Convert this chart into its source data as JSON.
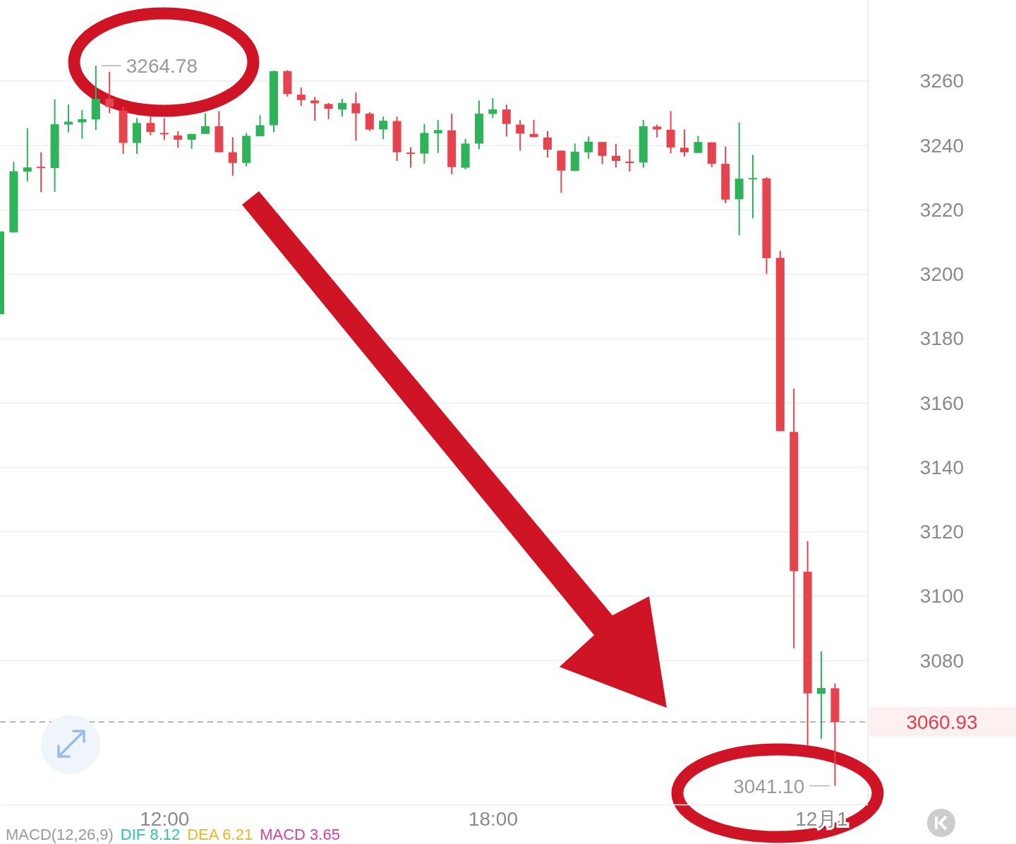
{
  "chart_data": {
    "type": "candlestick",
    "x": [
      9,
      9.25,
      9.5,
      9.75,
      10,
      10.25,
      10.5,
      10.75,
      11,
      11.25,
      11.5,
      11.75,
      12,
      12.25,
      12.5,
      12.75,
      13,
      13.25,
      13.5,
      13.75,
      14,
      14.25,
      14.5,
      14.75,
      15,
      15.25,
      15.5,
      15.75,
      16,
      16.25,
      16.5,
      16.75,
      17,
      17.25,
      17.5,
      17.75,
      18,
      18.25,
      18.5,
      18.75,
      19,
      19.25,
      19.5,
      19.75,
      20,
      20.25,
      20.5,
      20.75,
      21,
      21.25,
      21.5,
      21.75,
      22,
      22.25,
      22.5,
      22.75,
      23,
      23.25,
      23.5,
      23.75,
      24,
      24.25
    ],
    "ohlc": [
      [
        3187.6,
        3213.3,
        3187.6,
        3213.3
      ],
      [
        3213.0,
        3234.9,
        3213.0,
        3232.0
      ],
      [
        3231.9,
        3245.4,
        3228.8,
        3233.2
      ],
      [
        3233.4,
        3237.9,
        3225.5,
        3233.2
      ],
      [
        3233.0,
        3254.3,
        3225.6,
        3246.6
      ],
      [
        3246.5,
        3252.7,
        3244.1,
        3247.4
      ],
      [
        3247.2,
        3251.0,
        3242.1,
        3248.2
      ],
      [
        3248.1,
        3264.78,
        3244.8,
        3254.5
      ],
      [
        3254.5,
        3262.9,
        3250.0,
        3252.0
      ],
      [
        3250.8,
        3252.0,
        3237.4,
        3240.8
      ],
      [
        3240.8,
        3248.5,
        3237.4,
        3247.0
      ],
      [
        3247.0,
        3249.0,
        3243.2,
        3244.2
      ],
      [
        3243.9,
        3248.5,
        3241.7,
        3243.6
      ],
      [
        3243.1,
        3244.4,
        3239.3,
        3241.8
      ],
      [
        3241.8,
        3243.6,
        3239.0,
        3243.6
      ],
      [
        3243.6,
        3250.0,
        3243.6,
        3246.0
      ],
      [
        3246.0,
        3250.7,
        3237.9,
        3237.9
      ],
      [
        3237.9,
        3242.6,
        3230.6,
        3234.6
      ],
      [
        3234.6,
        3243.9,
        3233.5,
        3243.0
      ],
      [
        3242.9,
        3249.4,
        3242.9,
        3246.3
      ],
      [
        3246.3,
        3263.3,
        3244.1,
        3263.1
      ],
      [
        3263.1,
        3263.4,
        3255.2,
        3256.0
      ],
      [
        3255.8,
        3258.0,
        3252.3,
        3254.1
      ],
      [
        3254.0,
        3255.1,
        3247.7,
        3253.1
      ],
      [
        3252.9,
        3253.2,
        3248.2,
        3251.4
      ],
      [
        3251.2,
        3254.5,
        3249.0,
        3253.2
      ],
      [
        3253.1,
        3256.5,
        3241.5,
        3250.0
      ],
      [
        3249.9,
        3250.4,
        3244.5,
        3245.0
      ],
      [
        3245.0,
        3249.0,
        3242.0,
        3247.7
      ],
      [
        3247.6,
        3249.0,
        3235.2,
        3237.9
      ],
      [
        3237.8,
        3239.5,
        3233.1,
        3237.6
      ],
      [
        3237.5,
        3246.7,
        3234.4,
        3243.9
      ],
      [
        3243.8,
        3247.9,
        3237.7,
        3244.8
      ],
      [
        3244.7,
        3249.9,
        3231.1,
        3233.3
      ],
      [
        3233.1,
        3242.1,
        3232.6,
        3240.6
      ],
      [
        3240.6,
        3254.0,
        3238.9,
        3249.9
      ],
      [
        3249.8,
        3254.7,
        3248.5,
        3251.2
      ],
      [
        3251.2,
        3252.7,
        3242.8,
        3246.7
      ],
      [
        3246.5,
        3247.9,
        3238.4,
        3243.7
      ],
      [
        3243.6,
        3247.9,
        3242.6,
        3242.6
      ],
      [
        3242.5,
        3244.5,
        3236.3,
        3238.7
      ],
      [
        3238.4,
        3238.4,
        3225.3,
        3232.2
      ],
      [
        3232.1,
        3240.6,
        3232.1,
        3238.1
      ],
      [
        3237.9,
        3242.8,
        3235.9,
        3241.2
      ],
      [
        3241.1,
        3241.1,
        3234.2,
        3236.8
      ],
      [
        3236.8,
        3240.5,
        3233.2,
        3235.2
      ],
      [
        3235.0,
        3238.8,
        3231.9,
        3234.8
      ],
      [
        3234.7,
        3247.9,
        3233.1,
        3246.0
      ],
      [
        3245.9,
        3246.5,
        3242.5,
        3245.0
      ],
      [
        3244.9,
        3250.7,
        3237.5,
        3239.4
      ],
      [
        3239.3,
        3245.0,
        3236.6,
        3237.9
      ],
      [
        3237.7,
        3243.0,
        3237.7,
        3241.1
      ],
      [
        3241.0,
        3241.0,
        3233.3,
        3234.3
      ],
      [
        3234.3,
        3239.7,
        3222.1,
        3223.2
      ],
      [
        3223.3,
        3247.2,
        3212.1,
        3229.7
      ],
      [
        3229.8,
        3237.1,
        3217.4,
        3229.9
      ],
      [
        3229.8,
        3230.2,
        3200.1,
        3205.0
      ],
      [
        3205.1,
        3207.3,
        3151.3,
        3151.3
      ],
      [
        3151.0,
        3164.5,
        3083.8,
        3107.8
      ],
      [
        3107.6,
        3117.1,
        3053.5,
        3069.8
      ],
      [
        3069.7,
        3082.9,
        3055.7,
        3071.5
      ],
      [
        3071.4,
        3072.9,
        3041.1,
        3060.93
      ]
    ],
    "xlim": [
      9,
      24.85
    ],
    "xticks": [
      {
        "value": 12,
        "label": "12:00"
      },
      {
        "value": 18,
        "label": "18:00"
      },
      {
        "value": 24,
        "label": "12月1"
      }
    ],
    "ylim": [
      3035.3,
      3285.2
    ],
    "yticks": [
      3080,
      3100,
      3120,
      3140,
      3160,
      3180,
      3200,
      3220,
      3240,
      3260
    ],
    "grid": "y",
    "ref_lines": [
      {
        "axis": "y",
        "value": 3060.93,
        "label": "3060.93",
        "color": "#a0a0a0",
        "line_style": "dashed"
      }
    ],
    "annotations": [
      {
        "text": "3264.78",
        "x": 10.75,
        "y": 3264.78
      },
      {
        "text": "3041.10",
        "x": 24.25,
        "y": 3041.1
      },
      "MACD(12,26,9)",
      "DIF 8.12",
      "DEA 6.21",
      "MACD 3.65"
    ]
  }
}
